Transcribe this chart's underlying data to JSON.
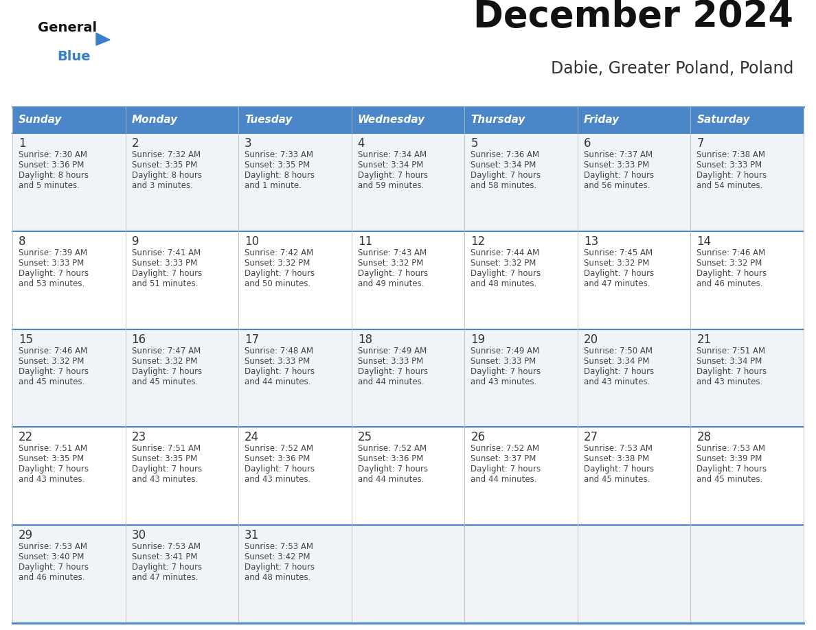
{
  "title": "December 2024",
  "subtitle": "Dabie, Greater Poland, Poland",
  "days_of_week": [
    "Sunday",
    "Monday",
    "Tuesday",
    "Wednesday",
    "Thursday",
    "Friday",
    "Saturday"
  ],
  "header_bg": "#4A86C8",
  "header_text": "#FFFFFF",
  "cell_bg": "#F0F4F8",
  "border_color": "#4A86C8",
  "day_num_color": "#333333",
  "text_color": "#444444",
  "title_color": "#111111",
  "subtitle_color": "#333333",
  "logo_general_color": "#111111",
  "logo_blue_color": "#3A7DC9",
  "weeks": [
    [
      {
        "day": 1,
        "sunrise": "7:30 AM",
        "sunset": "3:36 PM",
        "daylight_line1": "Daylight: 8 hours",
        "daylight_line2": "and 5 minutes."
      },
      {
        "day": 2,
        "sunrise": "7:32 AM",
        "sunset": "3:35 PM",
        "daylight_line1": "Daylight: 8 hours",
        "daylight_line2": "and 3 minutes."
      },
      {
        "day": 3,
        "sunrise": "7:33 AM",
        "sunset": "3:35 PM",
        "daylight_line1": "Daylight: 8 hours",
        "daylight_line2": "and 1 minute."
      },
      {
        "day": 4,
        "sunrise": "7:34 AM",
        "sunset": "3:34 PM",
        "daylight_line1": "Daylight: 7 hours",
        "daylight_line2": "and 59 minutes."
      },
      {
        "day": 5,
        "sunrise": "7:36 AM",
        "sunset": "3:34 PM",
        "daylight_line1": "Daylight: 7 hours",
        "daylight_line2": "and 58 minutes."
      },
      {
        "day": 6,
        "sunrise": "7:37 AM",
        "sunset": "3:33 PM",
        "daylight_line1": "Daylight: 7 hours",
        "daylight_line2": "and 56 minutes."
      },
      {
        "day": 7,
        "sunrise": "7:38 AM",
        "sunset": "3:33 PM",
        "daylight_line1": "Daylight: 7 hours",
        "daylight_line2": "and 54 minutes."
      }
    ],
    [
      {
        "day": 8,
        "sunrise": "7:39 AM",
        "sunset": "3:33 PM",
        "daylight_line1": "Daylight: 7 hours",
        "daylight_line2": "and 53 minutes."
      },
      {
        "day": 9,
        "sunrise": "7:41 AM",
        "sunset": "3:33 PM",
        "daylight_line1": "Daylight: 7 hours",
        "daylight_line2": "and 51 minutes."
      },
      {
        "day": 10,
        "sunrise": "7:42 AM",
        "sunset": "3:32 PM",
        "daylight_line1": "Daylight: 7 hours",
        "daylight_line2": "and 50 minutes."
      },
      {
        "day": 11,
        "sunrise": "7:43 AM",
        "sunset": "3:32 PM",
        "daylight_line1": "Daylight: 7 hours",
        "daylight_line2": "and 49 minutes."
      },
      {
        "day": 12,
        "sunrise": "7:44 AM",
        "sunset": "3:32 PM",
        "daylight_line1": "Daylight: 7 hours",
        "daylight_line2": "and 48 minutes."
      },
      {
        "day": 13,
        "sunrise": "7:45 AM",
        "sunset": "3:32 PM",
        "daylight_line1": "Daylight: 7 hours",
        "daylight_line2": "and 47 minutes."
      },
      {
        "day": 14,
        "sunrise": "7:46 AM",
        "sunset": "3:32 PM",
        "daylight_line1": "Daylight: 7 hours",
        "daylight_line2": "and 46 minutes."
      }
    ],
    [
      {
        "day": 15,
        "sunrise": "7:46 AM",
        "sunset": "3:32 PM",
        "daylight_line1": "Daylight: 7 hours",
        "daylight_line2": "and 45 minutes."
      },
      {
        "day": 16,
        "sunrise": "7:47 AM",
        "sunset": "3:32 PM",
        "daylight_line1": "Daylight: 7 hours",
        "daylight_line2": "and 45 minutes."
      },
      {
        "day": 17,
        "sunrise": "7:48 AM",
        "sunset": "3:33 PM",
        "daylight_line1": "Daylight: 7 hours",
        "daylight_line2": "and 44 minutes."
      },
      {
        "day": 18,
        "sunrise": "7:49 AM",
        "sunset": "3:33 PM",
        "daylight_line1": "Daylight: 7 hours",
        "daylight_line2": "and 44 minutes."
      },
      {
        "day": 19,
        "sunrise": "7:49 AM",
        "sunset": "3:33 PM",
        "daylight_line1": "Daylight: 7 hours",
        "daylight_line2": "and 43 minutes."
      },
      {
        "day": 20,
        "sunrise": "7:50 AM",
        "sunset": "3:34 PM",
        "daylight_line1": "Daylight: 7 hours",
        "daylight_line2": "and 43 minutes."
      },
      {
        "day": 21,
        "sunrise": "7:51 AM",
        "sunset": "3:34 PM",
        "daylight_line1": "Daylight: 7 hours",
        "daylight_line2": "and 43 minutes."
      }
    ],
    [
      {
        "day": 22,
        "sunrise": "7:51 AM",
        "sunset": "3:35 PM",
        "daylight_line1": "Daylight: 7 hours",
        "daylight_line2": "and 43 minutes."
      },
      {
        "day": 23,
        "sunrise": "7:51 AM",
        "sunset": "3:35 PM",
        "daylight_line1": "Daylight: 7 hours",
        "daylight_line2": "and 43 minutes."
      },
      {
        "day": 24,
        "sunrise": "7:52 AM",
        "sunset": "3:36 PM",
        "daylight_line1": "Daylight: 7 hours",
        "daylight_line2": "and 43 minutes."
      },
      {
        "day": 25,
        "sunrise": "7:52 AM",
        "sunset": "3:36 PM",
        "daylight_line1": "Daylight: 7 hours",
        "daylight_line2": "and 44 minutes."
      },
      {
        "day": 26,
        "sunrise": "7:52 AM",
        "sunset": "3:37 PM",
        "daylight_line1": "Daylight: 7 hours",
        "daylight_line2": "and 44 minutes."
      },
      {
        "day": 27,
        "sunrise": "7:53 AM",
        "sunset": "3:38 PM",
        "daylight_line1": "Daylight: 7 hours",
        "daylight_line2": "and 45 minutes."
      },
      {
        "day": 28,
        "sunrise": "7:53 AM",
        "sunset": "3:39 PM",
        "daylight_line1": "Daylight: 7 hours",
        "daylight_line2": "and 45 minutes."
      }
    ],
    [
      {
        "day": 29,
        "sunrise": "7:53 AM",
        "sunset": "3:40 PM",
        "daylight_line1": "Daylight: 7 hours",
        "daylight_line2": "and 46 minutes."
      },
      {
        "day": 30,
        "sunrise": "7:53 AM",
        "sunset": "3:41 PM",
        "daylight_line1": "Daylight: 7 hours",
        "daylight_line2": "and 47 minutes."
      },
      {
        "day": 31,
        "sunrise": "7:53 AM",
        "sunset": "3:42 PM",
        "daylight_line1": "Daylight: 7 hours",
        "daylight_line2": "and 48 minutes."
      },
      null,
      null,
      null,
      null
    ]
  ]
}
